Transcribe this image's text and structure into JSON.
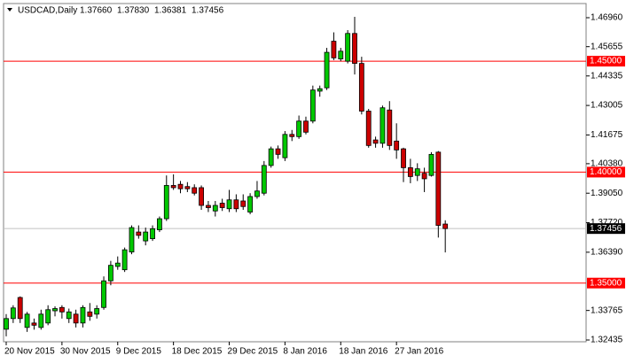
{
  "chart_data": {
    "type": "candlestick",
    "title": "USDCAD,Daily",
    "ohlc_labels": [
      "1.37660",
      "1.37830",
      "1.36381",
      "1.37456"
    ],
    "categories": [
      "20 Nov 2015",
      null,
      null,
      null,
      null,
      null,
      null,
      null,
      "30 Nov 2015",
      null,
      null,
      null,
      null,
      null,
      null,
      null,
      "9 Dec 2015",
      null,
      null,
      null,
      null,
      null,
      null,
      null,
      "18 Dec 2015",
      null,
      null,
      null,
      null,
      null,
      null,
      null,
      "29 Dec 2015",
      null,
      null,
      null,
      null,
      null,
      null,
      null,
      "8 Jan 2016",
      null,
      null,
      null,
      null,
      null,
      null,
      null,
      "18 Jan 2016",
      null,
      null,
      null,
      null,
      null,
      null,
      null,
      "27 Jan 2016",
      null,
      null,
      null,
      null,
      null,
      null,
      null
    ],
    "open": [
      1.3292,
      1.334,
      1.3435,
      1.33,
      1.332,
      1.33,
      1.332,
      1.3375,
      1.339,
      1.334,
      1.336,
      1.332,
      1.337,
      1.336,
      1.339,
      1.351,
      1.3575,
      1.356,
      1.364,
      1.373,
      1.369,
      1.37,
      1.374,
      1.379,
      1.394,
      1.3945,
      1.3935,
      1.393,
      1.393,
      1.385,
      1.3825,
      1.386,
      1.3835,
      1.3875,
      1.387,
      1.382,
      1.389,
      1.3905,
      1.403,
      1.4105,
      1.4065,
      1.417,
      1.416,
      1.423,
      1.423,
      1.4365,
      1.438,
      1.459,
      1.451,
      1.45,
      1.4625,
      1.449,
      1.4275,
      1.4145,
      1.413,
      1.428,
      1.414,
      1.4105,
      1.402,
      1.3985,
      1.3995,
      1.3985,
      1.409,
      1.3766
    ],
    "high": [
      1.336,
      1.34,
      1.344,
      1.337,
      1.334,
      1.338,
      1.34,
      1.3395,
      1.34,
      1.3385,
      1.338,
      1.34,
      1.341,
      1.34,
      1.353,
      1.36,
      1.362,
      1.366,
      1.376,
      1.376,
      1.375,
      1.376,
      1.38,
      1.3985,
      1.399,
      1.396,
      1.3955,
      1.3945,
      1.394,
      1.387,
      1.387,
      1.388,
      1.392,
      1.39,
      1.39,
      1.3905,
      1.396,
      1.405,
      1.4115,
      1.412,
      1.4185,
      1.419,
      1.4255,
      1.425,
      1.439,
      1.439,
      1.456,
      1.463,
      1.456,
      1.464,
      1.47,
      1.452,
      1.4285,
      1.416,
      1.43,
      1.432,
      1.422,
      1.411,
      1.406,
      1.404,
      1.402,
      1.409,
      1.4095,
      1.3783
    ],
    "low": [
      1.326,
      1.332,
      1.332,
      1.328,
      1.329,
      1.329,
      1.331,
      1.335,
      1.334,
      1.332,
      1.33,
      1.33,
      1.333,
      1.334,
      1.338,
      1.349,
      1.356,
      1.355,
      1.363,
      1.37,
      1.367,
      1.369,
      1.373,
      1.378,
      1.392,
      1.3905,
      1.391,
      1.3895,
      1.383,
      1.382,
      1.38,
      1.3825,
      1.382,
      1.382,
      1.383,
      1.381,
      1.388,
      1.3895,
      1.402,
      1.406,
      1.405,
      1.414,
      1.415,
      1.417,
      1.422,
      1.434,
      1.437,
      1.4505,
      1.45,
      1.449,
      1.444,
      1.426,
      1.411,
      1.411,
      1.411,
      1.41,
      1.406,
      1.3955,
      1.395,
      1.396,
      1.391,
      1.398,
      1.3705,
      1.36381
    ],
    "close": [
      1.334,
      1.3388,
      1.334,
      1.336,
      1.331,
      1.336,
      1.338,
      1.3385,
      1.337,
      1.337,
      1.332,
      1.339,
      1.335,
      1.3385,
      1.351,
      1.358,
      1.359,
      1.365,
      1.375,
      1.3715,
      1.373,
      1.3745,
      1.379,
      1.394,
      1.393,
      1.3925,
      1.3925,
      1.3905,
      1.385,
      1.384,
      1.385,
      1.384,
      1.3875,
      1.3835,
      1.3845,
      1.389,
      1.3915,
      1.403,
      1.4105,
      1.408,
      1.417,
      1.416,
      1.423,
      1.418,
      1.437,
      1.4376,
      1.454,
      1.4515,
      1.4545,
      1.4625,
      1.449,
      1.4275,
      1.412,
      1.413,
      1.429,
      1.412,
      1.41,
      1.402,
      1.398,
      1.4015,
      1.397,
      1.408,
      1.376,
      1.37456
    ],
    "up_color": "#00c800",
    "down_color": "#cc0000",
    "ylim": [
      1.32355,
      1.47598
    ],
    "yticks": [
      {
        "value": 1.4696,
        "label": "1.46960"
      },
      {
        "value": 1.45655,
        "label": "1.45655"
      },
      {
        "value": 1.44335,
        "label": "1.44335"
      },
      {
        "value": 1.43005,
        "label": "1.43005"
      },
      {
        "value": 1.41675,
        "label": "1.41675"
      },
      {
        "value": 1.4038,
        "label": "1.40380"
      },
      {
        "value": 1.3905,
        "label": "1.39050"
      },
      {
        "value": 1.3772,
        "label": "1.37720"
      },
      {
        "value": 1.3639,
        "label": "1.36390"
      },
      {
        "value": 1.33765,
        "label": "1.33765"
      },
      {
        "value": 1.32435,
        "label": "1.32435"
      }
    ],
    "levels": [
      {
        "value": 1.45,
        "label": "1.45000"
      },
      {
        "value": 1.4,
        "label": "1.40000"
      },
      {
        "value": 1.35,
        "label": "1.35000"
      }
    ],
    "level_color": "#ff0000",
    "price_line": {
      "value": 1.37456,
      "label": "1.37456"
    },
    "price_line_color": "#c0c0c0"
  }
}
